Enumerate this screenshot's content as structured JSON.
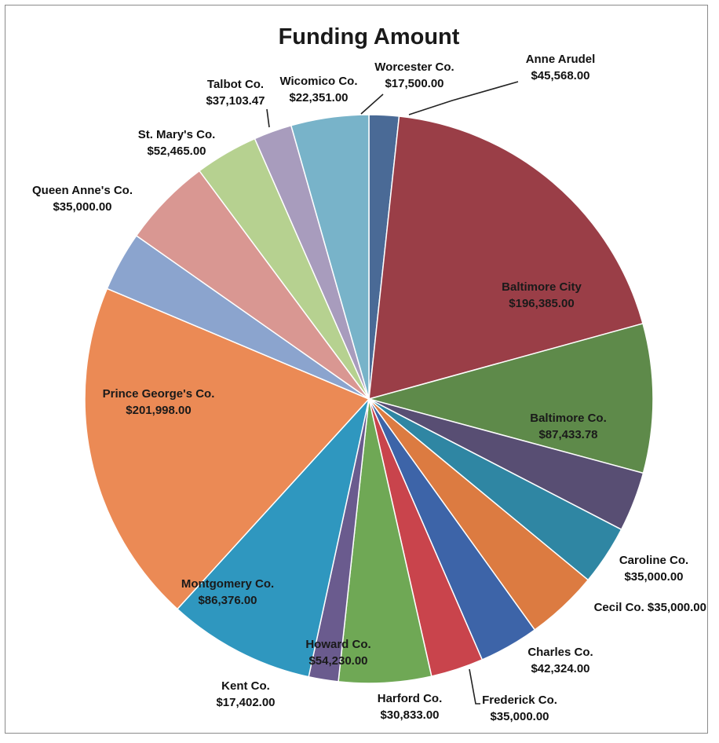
{
  "chart_data": {
    "type": "pie",
    "title": "Funding Amount",
    "slices": [
      {
        "label": "Worcester Co.",
        "amount": "$17,500.00",
        "value": 17500.0,
        "color": "#4a6a96"
      },
      {
        "label": "Baltimore City",
        "amount": "$196,385.00",
        "value": 196385.0,
        "color": "#9a3e47"
      },
      {
        "label": "Baltimore Co.",
        "amount": "$87,433.78",
        "value": 87433.78,
        "color": "#5e8a4a"
      },
      {
        "label": "Caroline Co.",
        "amount": "$35,000.00",
        "value": 35000.0,
        "color": "#584e73"
      },
      {
        "label": "Cecil Co. $35,000.00",
        "amount": "",
        "value": 35000.0,
        "color": "#2f86a3"
      },
      {
        "label": "Charles Co.",
        "amount": "$42,324.00",
        "value": 42324.0,
        "color": "#dc7b41"
      },
      {
        "label": "Frederick Co.",
        "amount": "$35,000.00",
        "value": 35000.0,
        "color": "#3d64a8"
      },
      {
        "label": "Harford Co.",
        "amount": "$30,833.00",
        "value": 30833.0,
        "color": "#c9444c"
      },
      {
        "label": "Howard Co.",
        "amount": "$54,230.00",
        "value": 54230.0,
        "color": "#6fa855"
      },
      {
        "label": "Kent Co.",
        "amount": "$17,402.00",
        "value": 17402.0,
        "color": "#6a5b8e"
      },
      {
        "label": "Montgomery Co.",
        "amount": "$86,376.00",
        "value": 86376.0,
        "color": "#2f97bf"
      },
      {
        "label": "Prince George's Co.",
        "amount": "$201,998.00",
        "value": 201998.0,
        "color": "#eb8a55"
      },
      {
        "label": "Queen Anne's Co.",
        "amount": "$35,000.00",
        "value": 35000.0,
        "color": "#8ba4ce"
      },
      {
        "label": "St. Mary's Co.",
        "amount": "$52,465.00",
        "value": 52465.0,
        "color": "#d99792"
      },
      {
        "label": "Talbot Co.",
        "amount": "$37,103.47",
        "value": 37103.47,
        "color": "#b6d190"
      },
      {
        "label": "Wicomico Co.",
        "amount": "$22,351.00",
        "value": 22351.0,
        "color": "#a89cbd"
      },
      {
        "label": "Anne Arudel",
        "amount": "$45,568.00",
        "value": 45568.0,
        "color": "#78b3c9"
      }
    ],
    "legend": "none",
    "data_labels": "category name and value"
  }
}
